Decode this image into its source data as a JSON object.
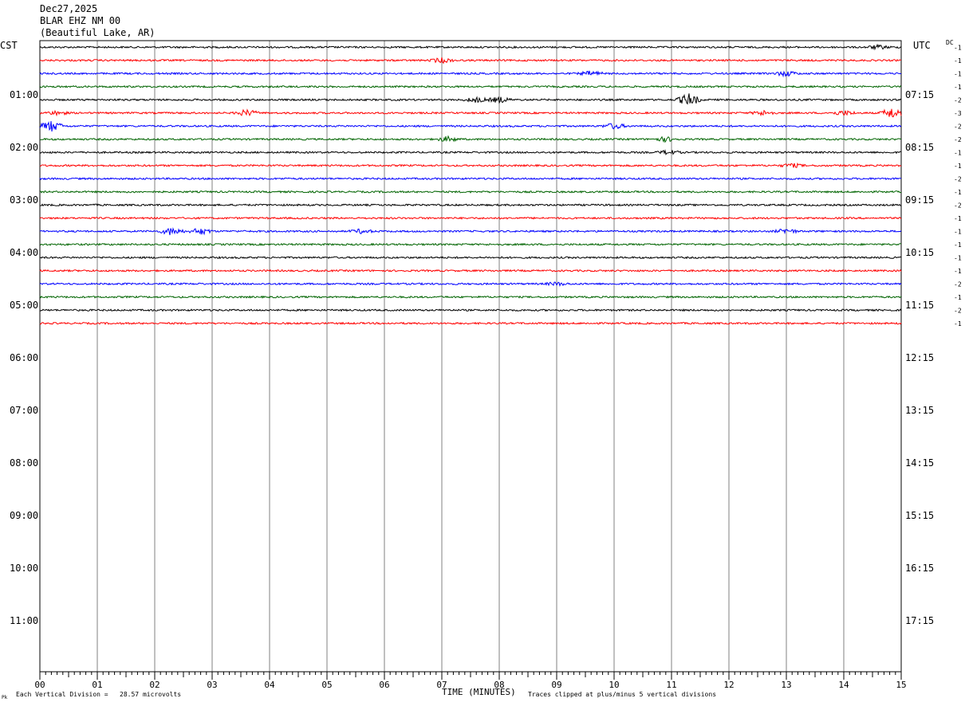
{
  "header": {
    "date": "Dec27,2025",
    "station": "BLAR EHZ NM 00",
    "location": "(Beautiful Lake, AR)"
  },
  "left_axis_title": "CST",
  "right_axis_title": "UTC",
  "dc_label": "DC",
  "footer": {
    "x_title": "TIME (MINUTES)",
    "division_note": "Each Vertical Division =   28.57 microvolts",
    "clip_note": "Traces clipped at plus/minus 5 vertical divisions",
    "logo_mark": "Pk"
  },
  "colors": {
    "trace_cycle": [
      "#000000",
      "#ff0000",
      "#0000ff",
      "#006400"
    ],
    "grid": "#808080",
    "frame": "#000000"
  },
  "chart_data": {
    "type": "line",
    "title": "BLAR EHZ NM 00",
    "xlabel": "TIME (MINUTES)",
    "xlim": [
      0,
      15
    ],
    "x_tick_labels": [
      "00",
      "01",
      "02",
      "03",
      "04",
      "05",
      "06",
      "07",
      "08",
      "09",
      "10",
      "11",
      "12",
      "13",
      "14",
      "15"
    ],
    "row_duration_minutes": 15,
    "total_rows_on_axis": 48,
    "hour_labels_cst": [
      "01:00",
      "02:00",
      "03:00",
      "04:00",
      "05:00",
      "06:00",
      "07:00",
      "08:00",
      "09:00",
      "10:00",
      "11:00"
    ],
    "hour_labels_utc": [
      "07:15",
      "08:15",
      "09:15",
      "10:15",
      "11:15",
      "12:15",
      "13:15",
      "14:15",
      "15:15",
      "16:15",
      "17:15"
    ],
    "dc_offsets": [
      "-1",
      "-1",
      "-1",
      "-1",
      "-2",
      "-3",
      "-2",
      "-2",
      "-1",
      "-1",
      "-2",
      "-1",
      "-2",
      "-1",
      "-1",
      "-1",
      "-1",
      "-1",
      "-2",
      "-1",
      "-2",
      "-1"
    ],
    "trace_count": 22,
    "events": [
      {
        "row": 0,
        "minute": 14.6,
        "amplitude": 1.2
      },
      {
        "row": 1,
        "minute": 7.0,
        "amplitude": 1.5
      },
      {
        "row": 2,
        "minute": 9.6,
        "amplitude": 1.5
      },
      {
        "row": 2,
        "minute": 13.0,
        "amplitude": 1.6
      },
      {
        "row": 4,
        "minute": 7.6,
        "amplitude": 1.6
      },
      {
        "row": 4,
        "minute": 8.0,
        "amplitude": 1.8
      },
      {
        "row": 4,
        "minute": 11.3,
        "amplitude": 4.0
      },
      {
        "row": 5,
        "minute": 0.3,
        "amplitude": 1.2
      },
      {
        "row": 5,
        "minute": 3.6,
        "amplitude": 2.0
      },
      {
        "row": 5,
        "minute": 12.6,
        "amplitude": 1.5
      },
      {
        "row": 5,
        "minute": 14.0,
        "amplitude": 1.5
      },
      {
        "row": 5,
        "minute": 14.85,
        "amplitude": 3.5
      },
      {
        "row": 6,
        "minute": 0.2,
        "amplitude": 3.5
      },
      {
        "row": 6,
        "minute": 10.0,
        "amplitude": 1.8
      },
      {
        "row": 7,
        "minute": 7.1,
        "amplitude": 1.6
      },
      {
        "row": 7,
        "minute": 10.9,
        "amplitude": 1.4
      },
      {
        "row": 8,
        "minute": 10.95,
        "amplitude": 1.3
      },
      {
        "row": 9,
        "minute": 13.1,
        "amplitude": 1.2
      },
      {
        "row": 14,
        "minute": 2.3,
        "amplitude": 2.5
      },
      {
        "row": 14,
        "minute": 2.8,
        "amplitude": 2.0
      },
      {
        "row": 14,
        "minute": 5.6,
        "amplitude": 1.3
      },
      {
        "row": 14,
        "minute": 13.0,
        "amplitude": 1.5
      },
      {
        "row": 18,
        "minute": 9.0,
        "amplitude": 1.0
      }
    ]
  }
}
